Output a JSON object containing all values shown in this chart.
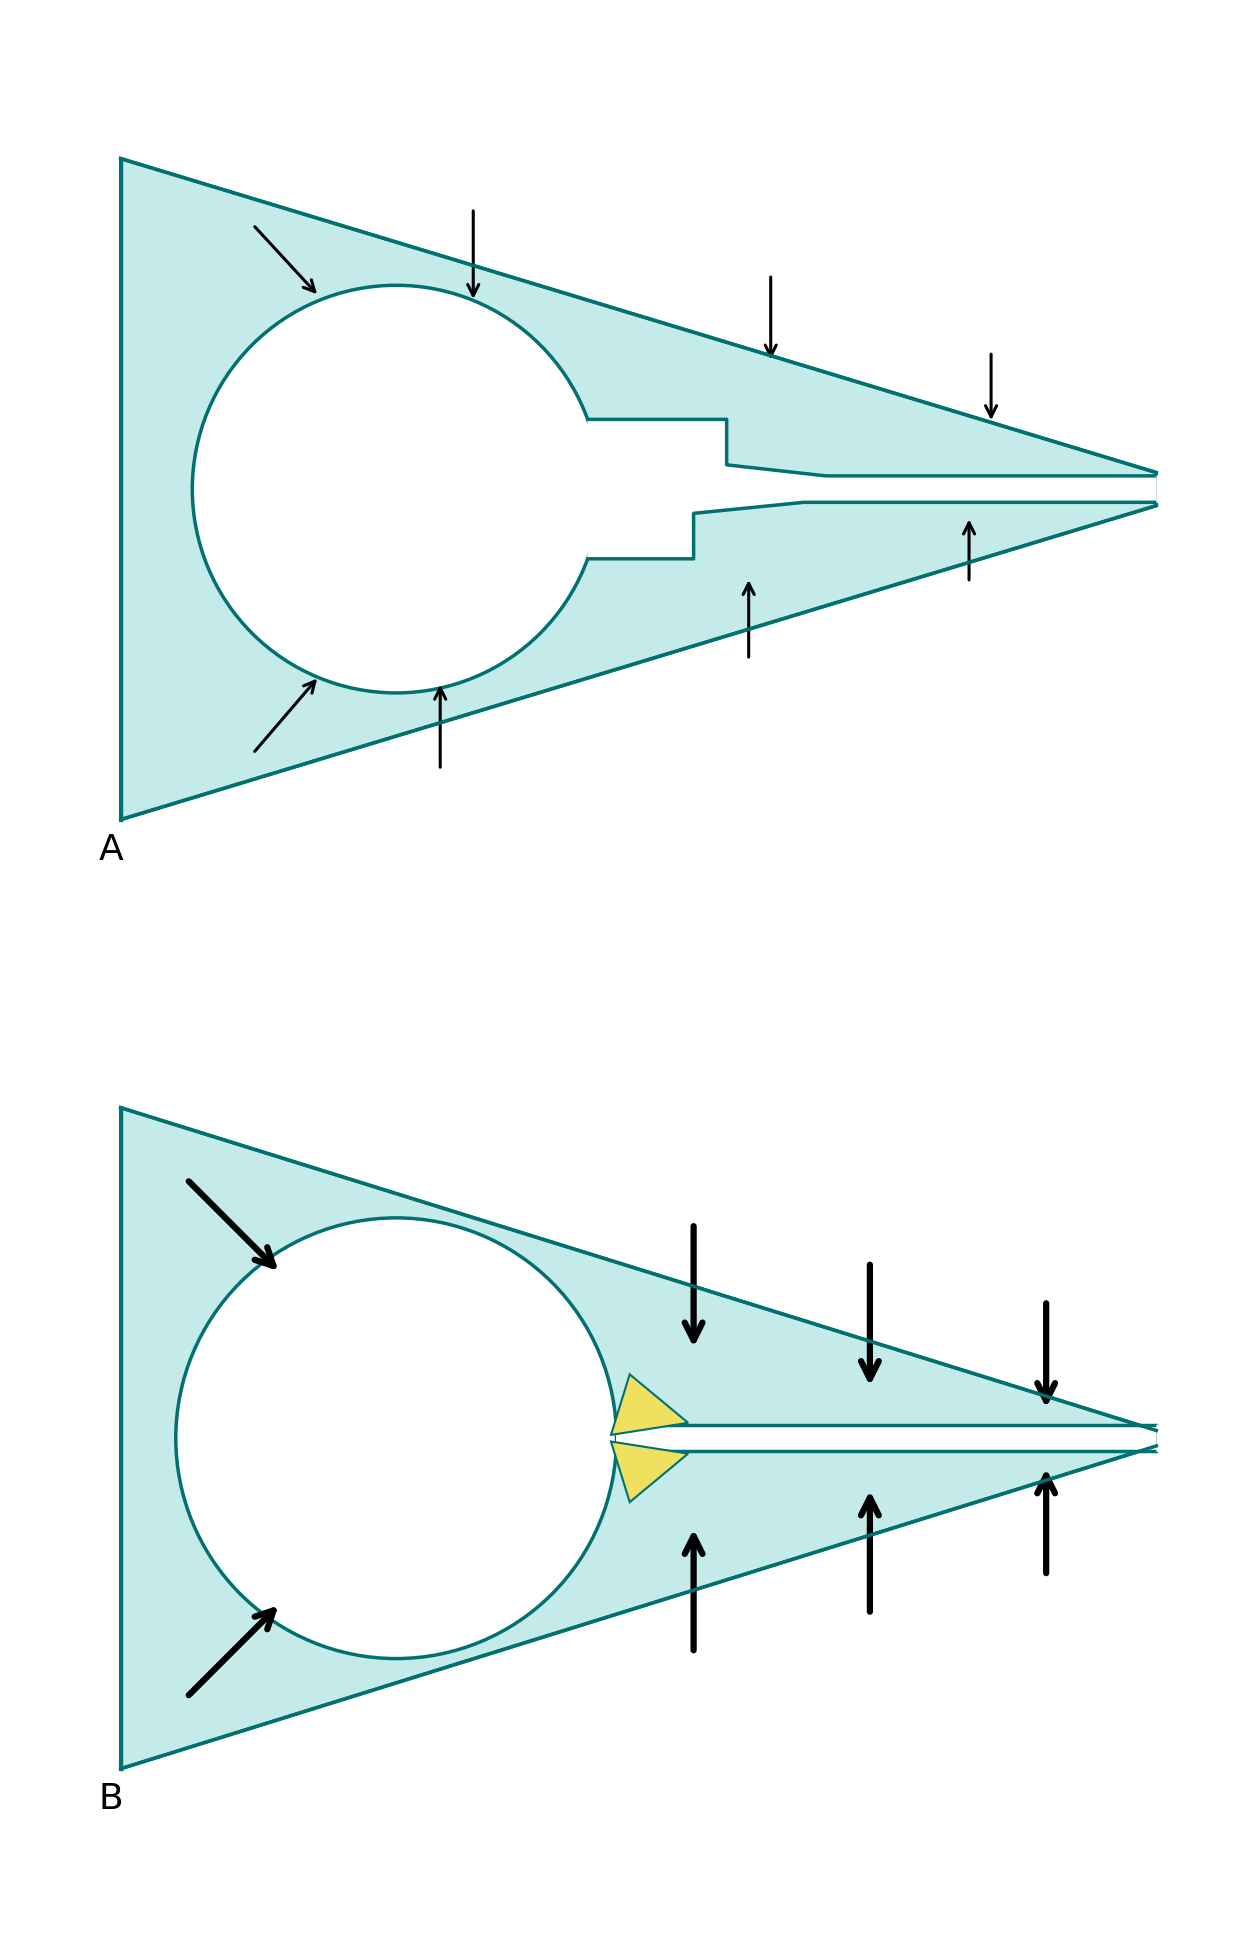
{
  "fig_width": 12.52,
  "fig_height": 19.37,
  "bg_color": "#ffffff",
  "fill_color": "#c5eaea",
  "edge_color": "#007070",
  "yellow_color": "#f0e060",
  "label_A": "A",
  "label_B": "B",
  "label_fontsize": 26,
  "arrow_color": "#000000",
  "thin_lw": 2.2,
  "thick_lw": 4.5,
  "thin_ms": 20,
  "thick_ms": 32,
  "edge_lw": 2.5
}
